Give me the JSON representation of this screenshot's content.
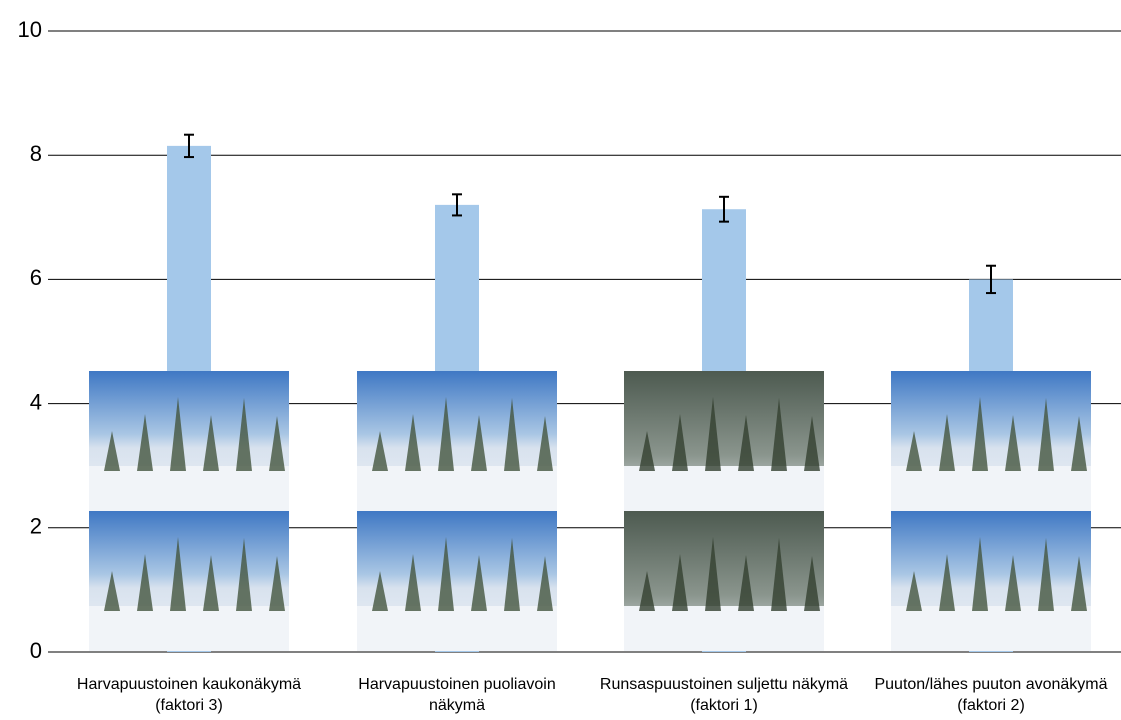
{
  "chart_data": {
    "type": "bar",
    "categories": [
      "Harvapuustoinen kaukonäkymä (faktori 3)",
      "Harvapuustoinen puoliavoin näkymä",
      "Runsaspuustoinen suljettu näkymä (faktori 1)",
      "Puuton/lähes puuton avonäkymä (faktori 2)"
    ],
    "values": [
      8.15,
      7.2,
      7.13,
      6.0
    ],
    "errors": [
      0.18,
      0.17,
      0.2,
      0.22
    ],
    "color": "#a4c8ea",
    "ylim": [
      0,
      10
    ],
    "yticks": [
      0,
      2,
      4,
      6,
      8,
      10
    ],
    "grid": true
  }
}
